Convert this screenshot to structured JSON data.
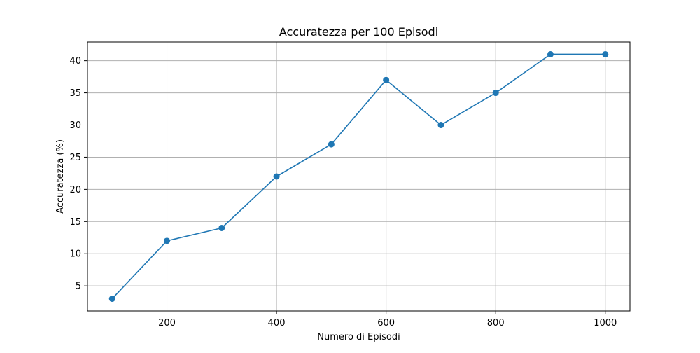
{
  "chart_data": {
    "type": "line",
    "title": "Accuratezza per 100 Episodi",
    "xlabel": "Numero di Episodi",
    "ylabel": "Accuratezza (%)",
    "x": [
      100,
      200,
      300,
      400,
      500,
      600,
      700,
      800,
      900,
      1000
    ],
    "series": [
      {
        "values": [
          3,
          12,
          14,
          22,
          27,
          37,
          30,
          35,
          41,
          41
        ],
        "color": "#1f77b4",
        "marker": "circle"
      }
    ],
    "xticks": [
      200,
      400,
      600,
      800,
      1000
    ],
    "yticks": [
      5,
      10,
      15,
      20,
      25,
      30,
      35,
      40
    ],
    "xlim": [
      55,
      1045
    ],
    "ylim": [
      1.1,
      42.9
    ],
    "grid": true
  }
}
